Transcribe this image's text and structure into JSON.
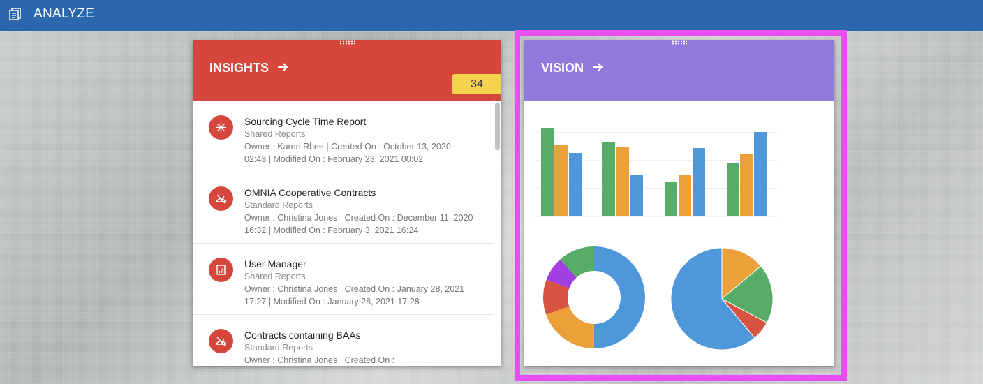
{
  "header": {
    "title": "ANALYZE"
  },
  "insights": {
    "title": "INSIGHTS",
    "badge": 34,
    "items": [
      {
        "title": "Sourcing Cycle Time Report",
        "category": "Shared Reports",
        "details": "Owner : Karen Rhee | Created On : October 13, 2020 02:43 | Modified On : February 23, 2021 00:02"
      },
      {
        "title": "OMNIA Cooperative Contracts",
        "category": "Standard Reports",
        "details": "Owner : Christina Jones | Created On : December 11, 2020 16:32 | Modified On : February 3, 2021 16:24"
      },
      {
        "title": "User Manager",
        "category": "Shared Reports",
        "details": "Owner : Christina Jones | Created On : January 28, 2021 17:27 | Modified On : January 28, 2021 17:28"
      },
      {
        "title": "Contracts containing BAAs",
        "category": "Standard Reports",
        "details": "Owner : Christina Jones | Created On :"
      }
    ]
  },
  "vision": {
    "title": "VISION"
  }
}
